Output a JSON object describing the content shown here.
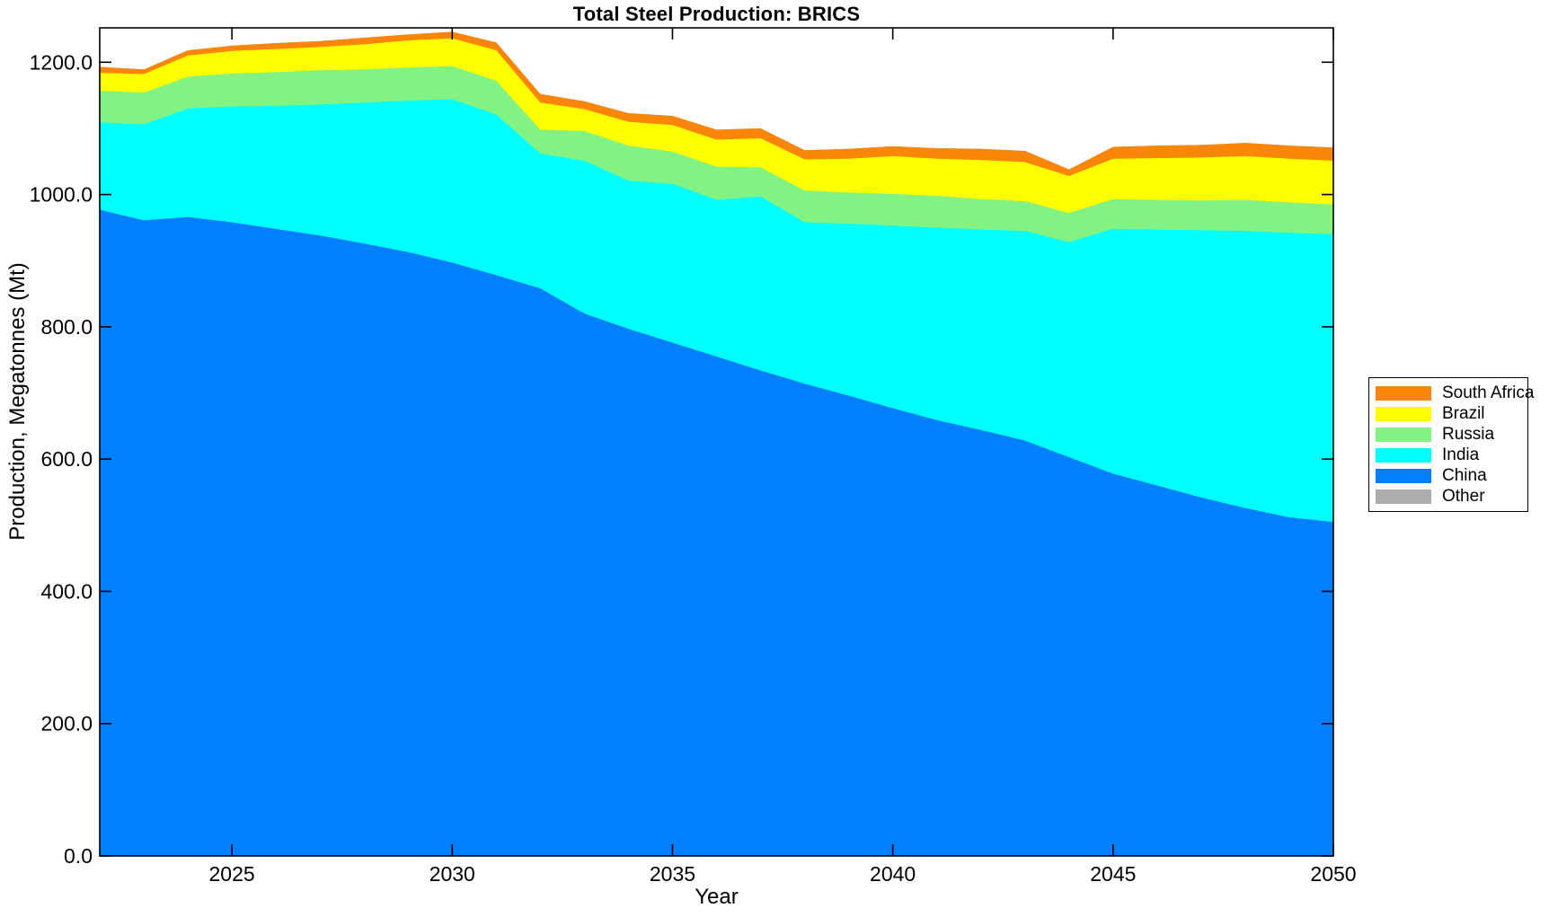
{
  "title": "Total Steel Production: BRICS",
  "xlabel": "Year",
  "ylabel": "Production, Megatonnes (Mt)",
  "legend": {
    "position": "outside-right",
    "items": [
      {
        "label": "South Africa",
        "color": "#F98608"
      },
      {
        "label": "Brazil",
        "color": "#FFFF00"
      },
      {
        "label": "Russia",
        "color": "#82F282"
      },
      {
        "label": "India",
        "color": "#00FFFF"
      },
      {
        "label": "China",
        "color": "#0080FF"
      },
      {
        "label": "Other",
        "color": "#ACACAC"
      }
    ]
  },
  "axes": {
    "x_ticks": [
      {
        "value": 2025,
        "label": "2025"
      },
      {
        "value": 2030,
        "label": "2030"
      },
      {
        "value": 2035,
        "label": "2035"
      },
      {
        "value": 2040,
        "label": "2040"
      },
      {
        "value": 2045,
        "label": "2045"
      },
      {
        "value": 2050,
        "label": "2050"
      }
    ],
    "y_ticks": [
      {
        "value": 0,
        "label": "0.0"
      },
      {
        "value": 200,
        "label": "200.0"
      },
      {
        "value": 400,
        "label": "400.0"
      },
      {
        "value": 600,
        "label": "600.0"
      },
      {
        "value": 800,
        "label": "800.0"
      },
      {
        "value": 1000,
        "label": "1000.0"
      },
      {
        "value": 1200,
        "label": "1200.0"
      }
    ]
  },
  "chart_data": {
    "type": "area",
    "stacked": true,
    "title": "Total Steel Production: BRICS",
    "xlabel": "Year",
    "ylabel": "Production, Megatonnes (Mt)",
    "unit": "Mt",
    "grid": false,
    "legend_position": "outside-right",
    "xlim": [
      2022,
      2050
    ],
    "ylim": [
      0,
      1252
    ],
    "x": [
      2022,
      2023,
      2024,
      2025,
      2026,
      2027,
      2028,
      2029,
      2030,
      2031,
      2032,
      2033,
      2034,
      2035,
      2036,
      2037,
      2038,
      2039,
      2040,
      2041,
      2042,
      2043,
      2044,
      2045,
      2046,
      2047,
      2048,
      2049,
      2050
    ],
    "series": [
      {
        "name": "China",
        "color": "#0080FF",
        "values": [
          977,
          961,
          966,
          958,
          948,
          938,
          926,
          913,
          897,
          878,
          858,
          820,
          797,
          776,
          755,
          734,
          714,
          696,
          677,
          659,
          644,
          628,
          603,
          578,
          560,
          542,
          526,
          512,
          505
        ]
      },
      {
        "name": "India",
        "color": "#00FFFF",
        "values": [
          132,
          145,
          164,
          175,
          186,
          198,
          213,
          229,
          247,
          243,
          204,
          231,
          224,
          240,
          237,
          263,
          244,
          260,
          276,
          291,
          303,
          317,
          325,
          370,
          387,
          404,
          419,
          430,
          435
        ]
      },
      {
        "name": "Russia",
        "color": "#82F282",
        "values": [
          48,
          48,
          48,
          50,
          51,
          52,
          50,
          50,
          50,
          51,
          36,
          45,
          53,
          49,
          50,
          44,
          48,
          47,
          48,
          48,
          46,
          45,
          44,
          45,
          45,
          45,
          47,
          46,
          45
        ]
      },
      {
        "name": "Brazil",
        "color": "#FFFF00",
        "values": [
          27,
          28,
          32,
          34,
          35,
          35,
          38,
          41,
          42,
          46,
          41,
          33,
          36,
          40,
          41,
          44,
          47,
          51,
          57,
          56,
          59,
          59,
          56,
          61,
          63,
          65,
          66,
          66,
          66
        ]
      },
      {
        "name": "South Africa",
        "color": "#F98608",
        "values": [
          9,
          7,
          8,
          8,
          9,
          9,
          10,
          9,
          10,
          12,
          13,
          12,
          13,
          14,
          15,
          15,
          14,
          15,
          15,
          16,
          17,
          17,
          10,
          18,
          19,
          19,
          20,
          20,
          20
        ]
      },
      {
        "name": "Other",
        "color": "#ACACAC",
        "values": [
          0,
          0,
          0,
          0,
          0,
          0,
          0,
          0,
          0,
          0,
          0,
          0,
          0,
          0,
          0,
          0,
          0,
          0,
          0,
          0,
          0,
          0,
          0,
          0,
          0,
          0,
          0,
          0,
          0
        ]
      }
    ]
  }
}
